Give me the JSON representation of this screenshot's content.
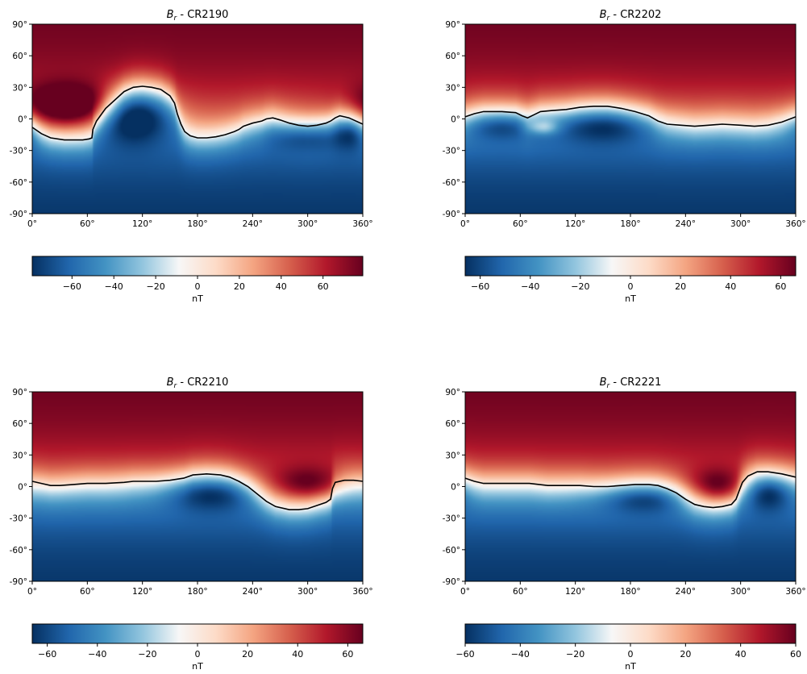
{
  "chart_data": [
    {
      "type": "heatmap",
      "title": "CR2190",
      "title_symbol": "B",
      "title_subscript": "r",
      "x_ticks": [
        "0°",
        "60°",
        "120°",
        "180°",
        "240°",
        "300°",
        "360°"
      ],
      "y_ticks": [
        "90°",
        "60°",
        "30°",
        "0°",
        "-30°",
        "-60°",
        "-90°"
      ],
      "xlim": [
        0,
        360
      ],
      "ylim": [
        -90,
        90
      ],
      "color_range": [
        -79,
        79
      ],
      "colormap": [
        "#053061",
        "#2166ac",
        "#4393c3",
        "#92c5de",
        "#f7f7f7",
        "#fddbc7",
        "#f4a582",
        "#d6604d",
        "#b2182b",
        "#67001f"
      ],
      "colorbar_ticks": [
        "-60",
        "-40",
        "-20",
        "0",
        "20",
        "40",
        "60"
      ],
      "colorbar_label": "nT",
      "neutral_line": [
        [
          0,
          -8
        ],
        [
          10,
          -14
        ],
        [
          20,
          -18
        ],
        [
          35,
          -20
        ],
        [
          55,
          -20
        ],
        [
          62,
          -19
        ],
        [
          65,
          -18
        ],
        [
          66,
          -10
        ],
        [
          70,
          -2
        ],
        [
          80,
          10
        ],
        [
          90,
          18
        ],
        [
          100,
          26
        ],
        [
          110,
          30
        ],
        [
          120,
          31
        ],
        [
          130,
          30
        ],
        [
          140,
          28
        ],
        [
          150,
          22
        ],
        [
          155,
          15
        ],
        [
          158,
          5
        ],
        [
          162,
          -5
        ],
        [
          166,
          -12
        ],
        [
          172,
          -16
        ],
        [
          180,
          -18
        ],
        [
          190,
          -18
        ],
        [
          200,
          -17
        ],
        [
          210,
          -15
        ],
        [
          220,
          -12
        ],
        [
          225,
          -10
        ],
        [
          230,
          -7
        ],
        [
          240,
          -4
        ],
        [
          250,
          -2
        ],
        [
          255,
          0
        ],
        [
          262,
          1
        ],
        [
          270,
          -1
        ],
        [
          280,
          -4
        ],
        [
          290,
          -6
        ],
        [
          300,
          -7
        ],
        [
          310,
          -6
        ],
        [
          320,
          -4
        ],
        [
          325,
          -2
        ],
        [
          330,
          1
        ],
        [
          335,
          3
        ],
        [
          340,
          2
        ],
        [
          345,
          1
        ],
        [
          350,
          -1
        ],
        [
          360,
          -5
        ]
      ],
      "lobes": [
        {
          "x": 40,
          "y": 12,
          "w": 35,
          "h": 14,
          "strength": 0.75
        },
        {
          "x": 110,
          "y": 5,
          "w": 28,
          "h": 18,
          "strength": -0.7
        },
        {
          "x": 300,
          "y": -15,
          "w": 30,
          "h": 10,
          "strength": -0.4
        },
        {
          "x": 348,
          "y": -10,
          "w": 12,
          "h": 12,
          "strength": -0.4
        }
      ]
    },
    {
      "type": "heatmap",
      "title": "CR2202",
      "title_symbol": "B",
      "title_subscript": "r",
      "x_ticks": [
        "0°",
        "60°",
        "120°",
        "180°",
        "240°",
        "300°",
        "360°"
      ],
      "y_ticks": [
        "90°",
        "60°",
        "30°",
        "0°",
        "-30°",
        "-60°",
        "-90°"
      ],
      "xlim": [
        0,
        360
      ],
      "ylim": [
        -90,
        90
      ],
      "color_range": [
        -66,
        66
      ],
      "colormap": [
        "#053061",
        "#2166ac",
        "#4393c3",
        "#92c5de",
        "#f7f7f7",
        "#fddbc7",
        "#f4a582",
        "#d6604d",
        "#b2182b",
        "#67001f"
      ],
      "colorbar_ticks": [
        "-60",
        "-40",
        "-20",
        "0",
        "20",
        "40",
        "60"
      ],
      "colorbar_label": "nT",
      "neutral_line": [
        [
          0,
          2
        ],
        [
          10,
          5
        ],
        [
          20,
          7
        ],
        [
          40,
          7
        ],
        [
          55,
          6
        ],
        [
          62,
          3
        ],
        [
          68,
          1
        ],
        [
          75,
          4
        ],
        [
          82,
          7
        ],
        [
          95,
          8
        ],
        [
          110,
          9
        ],
        [
          125,
          11
        ],
        [
          140,
          12
        ],
        [
          155,
          12
        ],
        [
          170,
          10
        ],
        [
          185,
          7
        ],
        [
          200,
          3
        ],
        [
          210,
          -2
        ],
        [
          220,
          -5
        ],
        [
          235,
          -6
        ],
        [
          250,
          -7
        ],
        [
          265,
          -6
        ],
        [
          280,
          -5
        ],
        [
          300,
          -6
        ],
        [
          315,
          -7
        ],
        [
          330,
          -6
        ],
        [
          345,
          -3
        ],
        [
          360,
          2
        ]
      ],
      "lobes": [
        {
          "x": 40,
          "y": -5,
          "w": 30,
          "h": 10,
          "strength": -0.45
        },
        {
          "x": 150,
          "y": -5,
          "w": 40,
          "h": 12,
          "strength": -0.5
        },
        {
          "x": 85,
          "y": -8,
          "w": 12,
          "h": 5,
          "strength": 0.45
        }
      ]
    },
    {
      "type": "heatmap",
      "title": "CR2210",
      "title_symbol": "B",
      "title_subscript": "r",
      "x_ticks": [
        "0°",
        "60°",
        "120°",
        "180°",
        "240°",
        "300°",
        "360°"
      ],
      "y_ticks": [
        "90°",
        "60°",
        "30°",
        "0°",
        "-30°",
        "-60°",
        "-90°"
      ],
      "xlim": [
        0,
        360
      ],
      "ylim": [
        -90,
        90
      ],
      "color_range": [
        -66,
        66
      ],
      "colormap": [
        "#053061",
        "#2166ac",
        "#4393c3",
        "#92c5de",
        "#f7f7f7",
        "#fddbc7",
        "#f4a582",
        "#d6604d",
        "#b2182b",
        "#67001f"
      ],
      "colorbar_ticks": [
        "-60",
        "-40",
        "-20",
        "0",
        "20",
        "40",
        "60"
      ],
      "colorbar_label": "nT",
      "neutral_line": [
        [
          0,
          5
        ],
        [
          10,
          3
        ],
        [
          20,
          1
        ],
        [
          30,
          1
        ],
        [
          45,
          2
        ],
        [
          60,
          3
        ],
        [
          80,
          3
        ],
        [
          100,
          4
        ],
        [
          110,
          5
        ],
        [
          120,
          5
        ],
        [
          135,
          5
        ],
        [
          150,
          6
        ],
        [
          165,
          8
        ],
        [
          175,
          11
        ],
        [
          190,
          12
        ],
        [
          205,
          11
        ],
        [
          215,
          9
        ],
        [
          225,
          5
        ],
        [
          235,
          0
        ],
        [
          245,
          -7
        ],
        [
          255,
          -14
        ],
        [
          265,
          -19
        ],
        [
          280,
          -22
        ],
        [
          290,
          -22
        ],
        [
          300,
          -21
        ],
        [
          310,
          -18
        ],
        [
          320,
          -15
        ],
        [
          325,
          -12
        ],
        [
          327,
          -2
        ],
        [
          330,
          4
        ],
        [
          340,
          6
        ],
        [
          350,
          6
        ],
        [
          360,
          5
        ]
      ],
      "lobes": [
        {
          "x": 195,
          "y": -5,
          "w": 35,
          "h": 12,
          "strength": -0.5
        },
        {
          "x": 300,
          "y": 2,
          "w": 30,
          "h": 12,
          "strength": 0.5
        }
      ]
    },
    {
      "type": "heatmap",
      "title": "CR2221",
      "title_symbol": "B",
      "title_subscript": "r",
      "x_ticks": [
        "0°",
        "60°",
        "120°",
        "180°",
        "240°",
        "300°",
        "360°"
      ],
      "y_ticks": [
        "90°",
        "60°",
        "30°",
        "0°",
        "-30°",
        "-60°",
        "-90°"
      ],
      "xlim": [
        0,
        360
      ],
      "ylim": [
        -90,
        90
      ],
      "color_range": [
        -60,
        60
      ],
      "colormap": [
        "#053061",
        "#2166ac",
        "#4393c3",
        "#92c5de",
        "#f7f7f7",
        "#fddbc7",
        "#f4a582",
        "#d6604d",
        "#b2182b",
        "#67001f"
      ],
      "colorbar_ticks": [
        "-60",
        "-40",
        "-20",
        "0",
        "20",
        "40",
        "60"
      ],
      "colorbar_label": "nT",
      "neutral_line": [
        [
          0,
          8
        ],
        [
          10,
          5
        ],
        [
          20,
          3
        ],
        [
          35,
          3
        ],
        [
          50,
          3
        ],
        [
          70,
          3
        ],
        [
          90,
          1
        ],
        [
          110,
          1
        ],
        [
          125,
          1
        ],
        [
          140,
          0
        ],
        [
          155,
          0
        ],
        [
          170,
          1
        ],
        [
          185,
          2
        ],
        [
          200,
          2
        ],
        [
          210,
          1
        ],
        [
          220,
          -2
        ],
        [
          230,
          -6
        ],
        [
          240,
          -12
        ],
        [
          250,
          -17
        ],
        [
          260,
          -19
        ],
        [
          270,
          -20
        ],
        [
          280,
          -19
        ],
        [
          290,
          -17
        ],
        [
          295,
          -12
        ],
        [
          298,
          -5
        ],
        [
          302,
          4
        ],
        [
          308,
          10
        ],
        [
          318,
          14
        ],
        [
          330,
          14
        ],
        [
          345,
          12
        ],
        [
          360,
          9
        ]
      ],
      "lobes": [
        {
          "x": 195,
          "y": -10,
          "w": 35,
          "h": 10,
          "strength": -0.45
        },
        {
          "x": 275,
          "y": 0,
          "w": 22,
          "h": 12,
          "strength": 0.55
        },
        {
          "x": 330,
          "y": -5,
          "w": 18,
          "h": 12,
          "strength": -0.5
        }
      ]
    }
  ]
}
